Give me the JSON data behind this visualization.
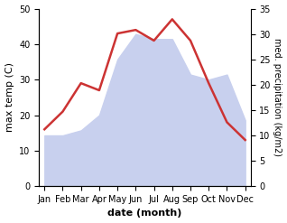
{
  "months": [
    "Jan",
    "Feb",
    "Mar",
    "Apr",
    "May",
    "Jun",
    "Jul",
    "Aug",
    "Sep",
    "Oct",
    "Nov",
    "Dec"
  ],
  "max_temp": [
    16,
    21,
    29,
    27,
    43,
    44,
    41,
    47,
    41,
    29,
    18,
    13
  ],
  "precipitation": [
    10,
    10,
    11,
    14,
    25,
    30,
    29,
    29,
    22,
    21,
    22,
    13
  ],
  "temp_ylim": [
    0,
    50
  ],
  "precip_ylim": [
    0,
    35
  ],
  "temp_color": "#cc3333",
  "precip_fill_color": "#c8d0ee",
  "xlabel": "date (month)",
  "ylabel_left": "max temp (C)",
  "ylabel_right": "med. precipitation (kg/m2)",
  "label_fontsize": 8,
  "tick_fontsize": 7,
  "bg_color": "#ffffff"
}
